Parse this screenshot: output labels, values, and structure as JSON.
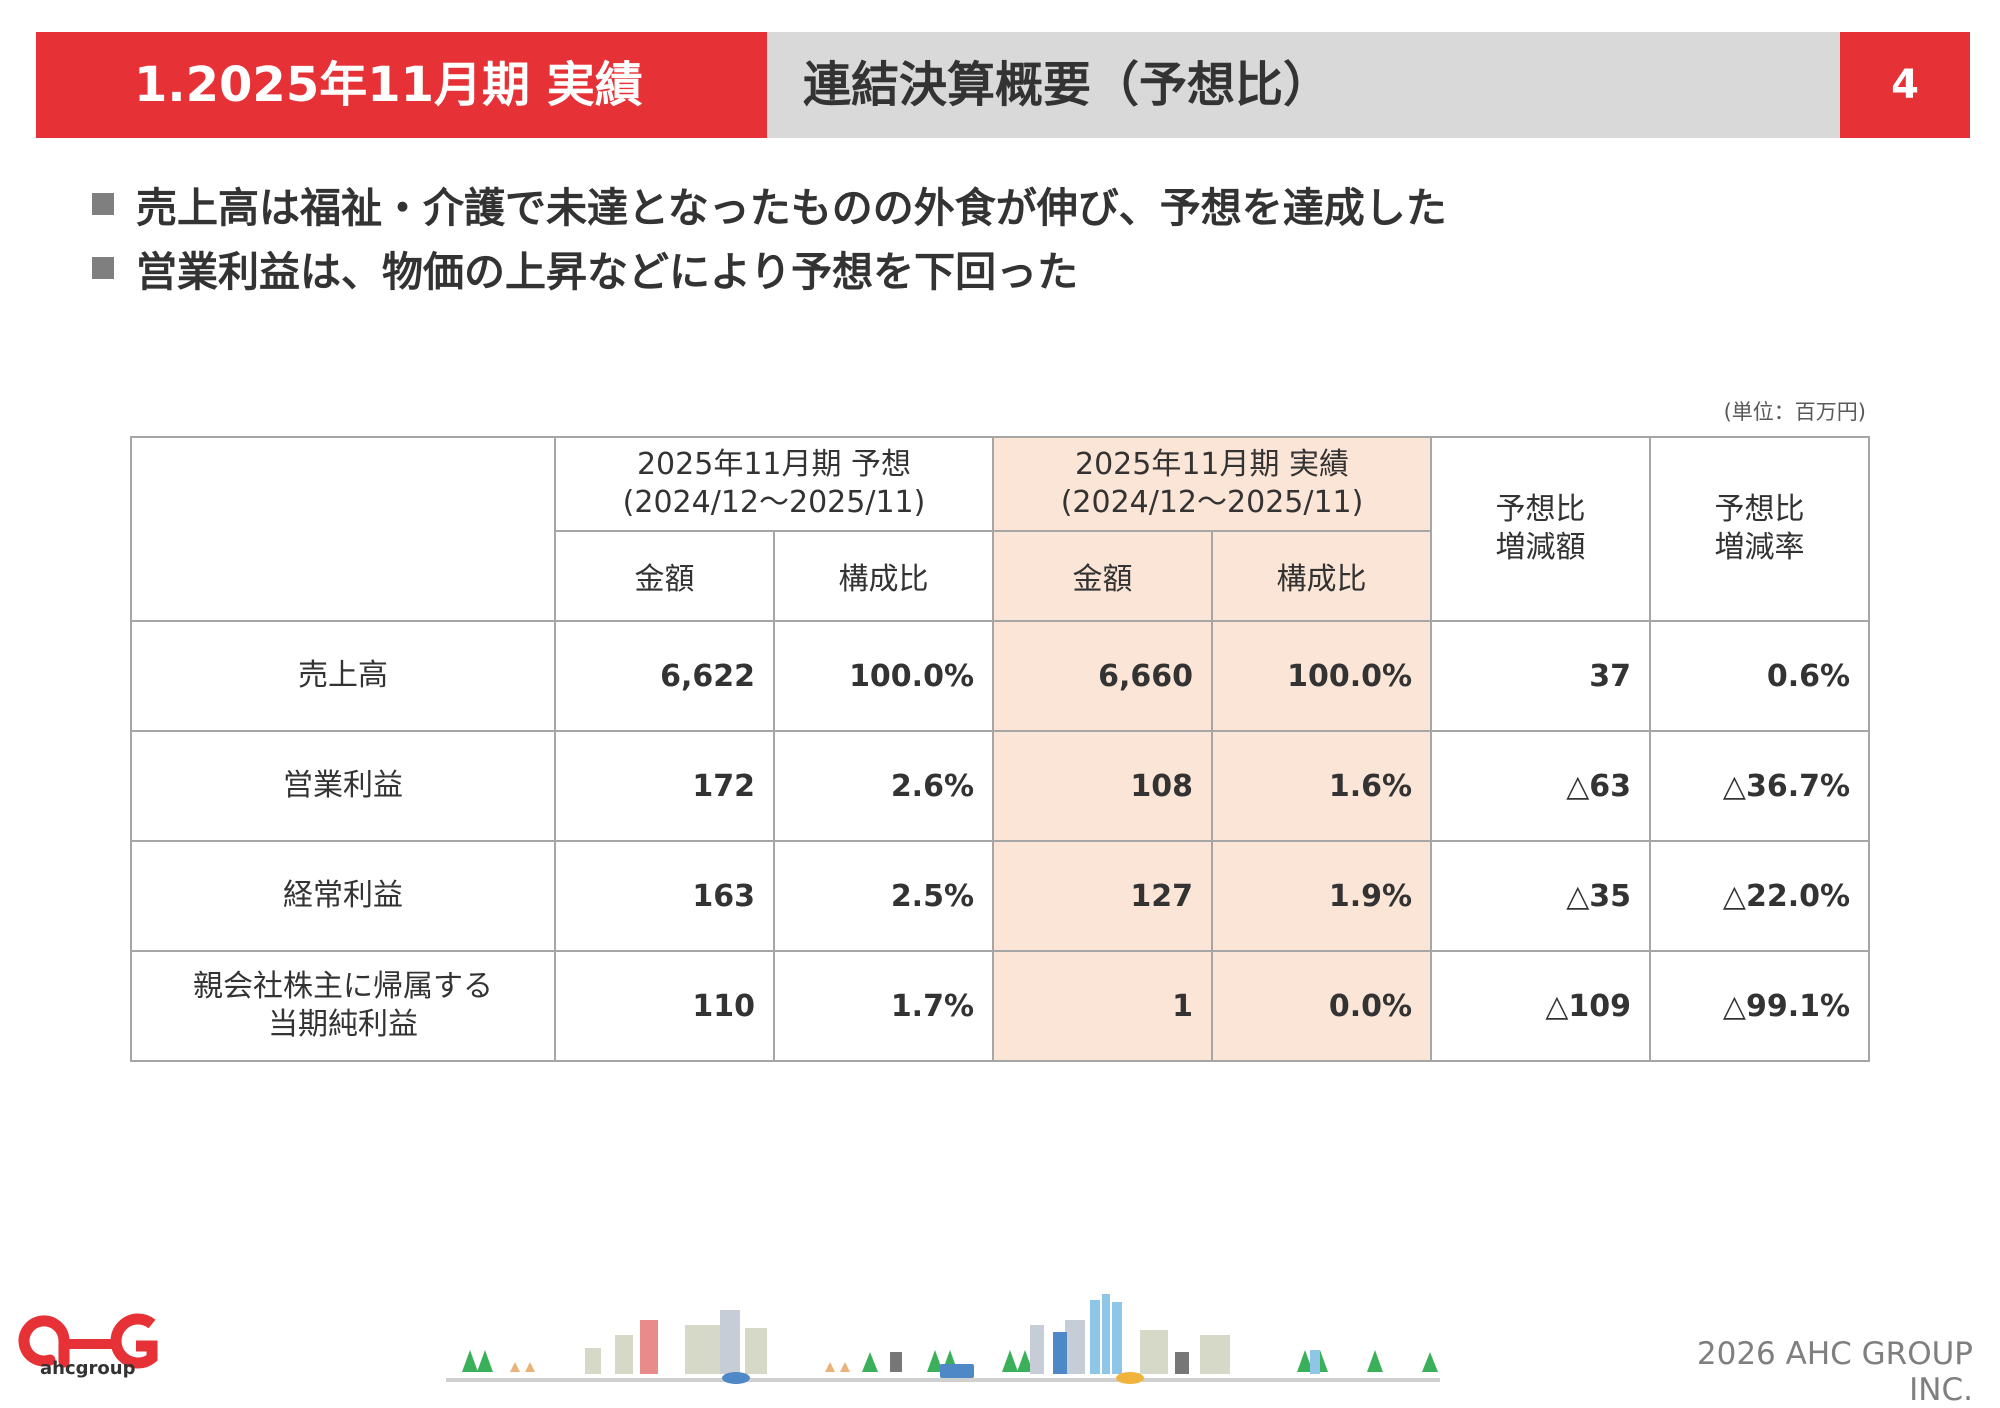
{
  "header": {
    "section_label": "1.2025年11月期 実績",
    "title": "連結決算概要（予想比）",
    "page_number": "4"
  },
  "bullets": [
    "売上高は福祉・介護で未達となったものの外食が伸び、予想を達成した",
    "営業利益は、物価の上昇などにより予想を下回った"
  ],
  "table": {
    "unit": "(単位：百万円)",
    "forecast_header": [
      "2025年11月期 予想",
      "(2024/12～2025/11)"
    ],
    "actual_header": [
      "2025年11月期 実績",
      "(2024/12～2025/11)"
    ],
    "diff_amount_header": [
      "予想比",
      "増減額"
    ],
    "diff_rate_header": [
      "予想比",
      "増減率"
    ],
    "sub_amount": "金額",
    "sub_ratio": "構成比",
    "rows": [
      {
        "label": [
          "売上高"
        ],
        "fc_amount": "6,622",
        "fc_ratio": "100.0%",
        "ac_amount": "6,660",
        "ac_ratio": "100.0%",
        "diff": "37",
        "rate": "0.6%"
      },
      {
        "label": [
          "営業利益"
        ],
        "fc_amount": "172",
        "fc_ratio": "2.6%",
        "ac_amount": "108",
        "ac_ratio": "1.6%",
        "diff": "△63",
        "rate": "△36.7%"
      },
      {
        "label": [
          "経常利益"
        ],
        "fc_amount": "163",
        "fc_ratio": "2.5%",
        "ac_amount": "127",
        "ac_ratio": "1.9%",
        "diff": "△35",
        "rate": "△22.0%"
      },
      {
        "label": [
          "親会社株主に帰属する",
          "当期純利益"
        ],
        "fc_amount": "110",
        "fc_ratio": "1.7%",
        "ac_amount": "1",
        "ac_ratio": "0.0%",
        "diff": "△109",
        "rate": "△99.1%"
      }
    ]
  },
  "footer": {
    "copyright": "2026 AHC GROUP INC.",
    "logo_text": "ahcgroup"
  },
  "colors": {
    "accent_red": "#e63236",
    "title_gray": "#d9d9d9",
    "highlight_pink": "#fbe5d6"
  }
}
